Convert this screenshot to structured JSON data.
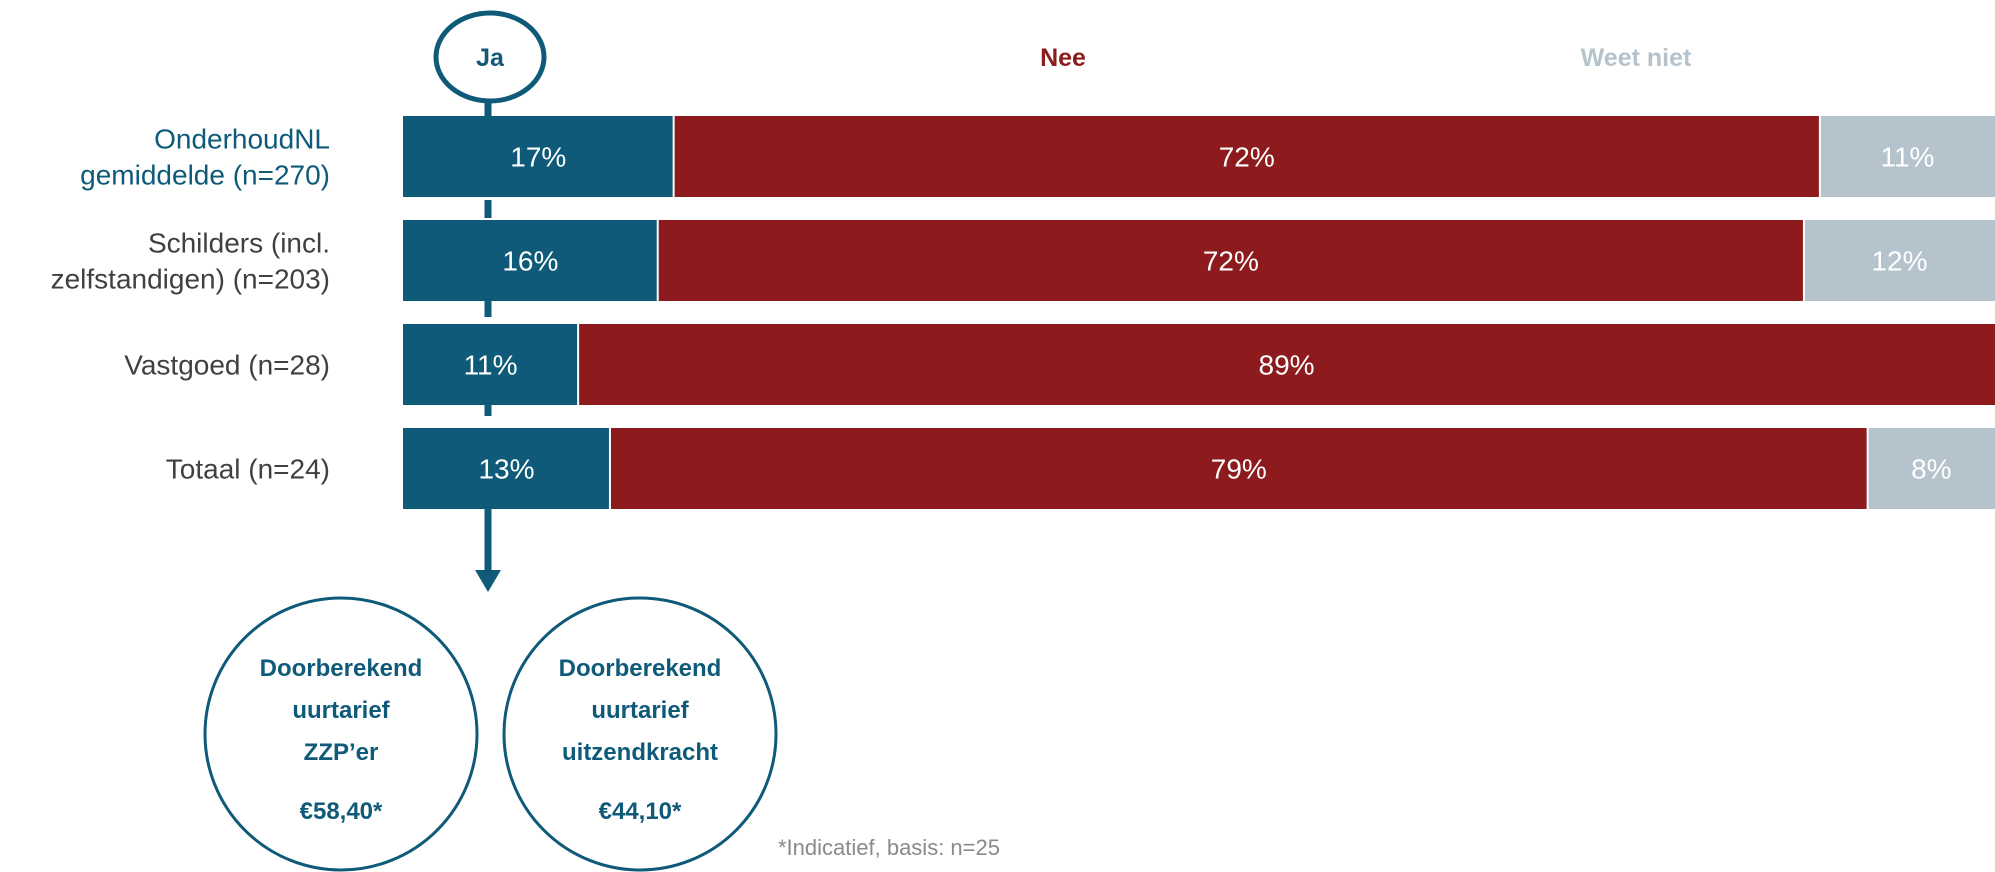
{
  "chart_data": {
    "type": "bar",
    "stacked": true,
    "orientation": "horizontal",
    "categories": [
      [
        "OnderhoudNL",
        "gemiddelde (n=270)"
      ],
      [
        "Schilders (incl.",
        "zelfstandigen) (n=203)"
      ],
      [
        "Vastgoed (n=28)"
      ],
      [
        "Totaal (n=24)"
      ]
    ],
    "series": [
      {
        "name": "Ja",
        "values": [
          17,
          16,
          11,
          13
        ],
        "labels": [
          "17%",
          "16%",
          "11%",
          "13%"
        ]
      },
      {
        "name": "Nee",
        "values": [
          72,
          72,
          89,
          79
        ],
        "labels": [
          "72%",
          "72%",
          "89%",
          "79%"
        ]
      },
      {
        "name": "Weet niet",
        "values": [
          11,
          12,
          0,
          8
        ],
        "labels": [
          "11%",
          "12%",
          "",
          "8%"
        ]
      }
    ],
    "xlim": [
      0,
      100
    ]
  },
  "callouts": [
    {
      "lines": [
        "Doorberekend",
        "uurtarief",
        "ZZP’er"
      ],
      "value": "€58,40*"
    },
    {
      "lines": [
        "Doorberekend",
        "uurtarief",
        "uitzendkracht"
      ],
      "value": "€44,10*"
    }
  ],
  "footnote": "*Indicatief, basis: n=25",
  "colors": {
    "ja": "#0e5a78",
    "nee": "#8d1b1d",
    "weet_niet": "#b5c3cd",
    "category_highlight": "#0e5a78",
    "category_text": "#404040",
    "footnote": "#8a8a8a"
  }
}
